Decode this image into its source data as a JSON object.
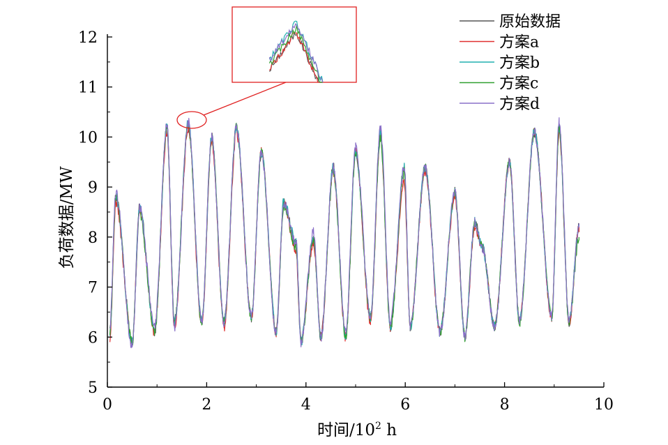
{
  "chart_data": {
    "type": "line",
    "xlabel": "时间/10",
    "xlabel_sup": "2",
    "xlabel_unit": " h",
    "ylabel": "负荷数据/MW",
    "xlim": [
      0,
      10
    ],
    "ylim": [
      5,
      12
    ],
    "xticks": [
      "0",
      "2",
      "4",
      "6",
      "8",
      "10"
    ],
    "yticks": [
      "5",
      "6",
      "7",
      "8",
      "9",
      "10",
      "11",
      "12"
    ],
    "grid": false,
    "legend_position": "top-right",
    "inset": {
      "type": "zoom",
      "region_center": [
        1.65,
        10.35
      ]
    },
    "daily_extremes_x": [
      0.05,
      0.17,
      0.5,
      0.65,
      0.95,
      1.2,
      1.35,
      1.63,
      1.9,
      2.1,
      2.35,
      2.6,
      2.9,
      3.1,
      3.4,
      3.55,
      3.8,
      3.9,
      4.15,
      4.3,
      4.55,
      4.8,
      5.0,
      5.3,
      5.5,
      5.7,
      5.98,
      6.1,
      6.4,
      6.7,
      7.0,
      7.2,
      7.4,
      7.55,
      7.8,
      8.1,
      8.3,
      8.6,
      8.95,
      9.1,
      9.3,
      9.5
    ],
    "series": [
      {
        "name": "原始数据",
        "color": "#555555",
        "x": [
          0.05,
          0.17,
          0.5,
          0.65,
          0.95,
          1.2,
          1.35,
          1.63,
          1.9,
          2.1,
          2.35,
          2.6,
          2.9,
          3.1,
          3.4,
          3.55,
          3.8,
          3.9,
          4.15,
          4.3,
          4.55,
          4.8,
          5.0,
          5.3,
          5.5,
          5.7,
          5.98,
          6.1,
          6.4,
          6.7,
          7.0,
          7.2,
          7.4,
          7.55,
          7.8,
          8.1,
          8.3,
          8.6,
          8.95,
          9.1,
          9.3,
          9.5
        ],
        "values": [
          6.1,
          8.8,
          5.9,
          8.6,
          6.1,
          10.2,
          6.3,
          10.2,
          6.3,
          10.0,
          6.3,
          10.2,
          6.4,
          9.7,
          6.1,
          8.7,
          7.9,
          5.9,
          8.0,
          6.0,
          9.4,
          6.0,
          9.7,
          6.4,
          10.1,
          6.2,
          9.4,
          6.2,
          9.4,
          6.1,
          8.9,
          6.0,
          8.3,
          7.8,
          6.2,
          9.5,
          6.3,
          10.1,
          6.4,
          10.2,
          6.3,
          8.2
        ]
      },
      {
        "name": "方案a",
        "color": "#e03030",
        "x": [
          0.05,
          0.17,
          0.5,
          0.65,
          0.95,
          1.2,
          1.35,
          1.63,
          1.9,
          2.1,
          2.35,
          2.6,
          2.9,
          3.1,
          3.4,
          3.55,
          3.8,
          3.9,
          4.15,
          4.3,
          4.55,
          4.8,
          5.0,
          5.3,
          5.5,
          5.7,
          5.98,
          6.1,
          6.4,
          6.7,
          7.0,
          7.2,
          7.4,
          7.55,
          7.8,
          8.1,
          8.3,
          8.6,
          8.95,
          9.1,
          9.3,
          9.5
        ],
        "values": [
          6.0,
          8.7,
          5.9,
          8.5,
          6.1,
          10.1,
          6.2,
          10.2,
          6.2,
          9.9,
          6.2,
          10.1,
          6.4,
          9.7,
          6.1,
          8.7,
          7.7,
          5.9,
          7.9,
          6.0,
          9.3,
          6.0,
          9.7,
          6.3,
          10.0,
          6.2,
          9.1,
          6.2,
          9.3,
          6.1,
          8.8,
          6.0,
          8.2,
          7.8,
          6.2,
          9.5,
          6.3,
          10.1,
          6.4,
          10.1,
          6.3,
          8.2
        ]
      },
      {
        "name": "方案b",
        "color": "#20b0b0",
        "x": [
          0.05,
          0.17,
          0.5,
          0.65,
          0.95,
          1.2,
          1.35,
          1.63,
          1.9,
          2.1,
          2.35,
          2.6,
          2.9,
          3.1,
          3.4,
          3.55,
          3.8,
          3.9,
          4.15,
          4.3,
          4.55,
          4.8,
          5.0,
          5.3,
          5.5,
          5.7,
          5.98,
          6.1,
          6.4,
          6.7,
          7.0,
          7.2,
          7.4,
          7.55,
          7.8,
          8.1,
          8.3,
          8.6,
          8.95,
          9.1,
          9.3,
          9.5
        ],
        "values": [
          6.1,
          8.8,
          5.9,
          8.6,
          6.1,
          10.2,
          6.3,
          10.3,
          6.3,
          10.0,
          6.3,
          10.2,
          6.4,
          9.7,
          6.1,
          8.7,
          7.9,
          5.9,
          8.0,
          6.0,
          9.4,
          6.0,
          9.7,
          6.4,
          10.1,
          6.2,
          9.4,
          6.2,
          9.4,
          6.1,
          8.9,
          6.0,
          8.3,
          7.8,
          6.2,
          9.5,
          6.3,
          10.1,
          6.4,
          10.2,
          6.3,
          8.2
        ]
      },
      {
        "name": "方案c",
        "color": "#30a030",
        "x": [
          0.05,
          0.17,
          0.5,
          0.65,
          0.95,
          1.2,
          1.35,
          1.63,
          1.9,
          2.1,
          2.35,
          2.6,
          2.9,
          3.1,
          3.4,
          3.55,
          3.8,
          3.9,
          4.15,
          4.3,
          4.55,
          4.8,
          5.0,
          5.3,
          5.5,
          5.7,
          5.98,
          6.1,
          6.4,
          6.7,
          7.0,
          7.2,
          7.4,
          7.55,
          7.8,
          8.1,
          8.3,
          8.6,
          8.95,
          9.1,
          9.3,
          9.5
        ],
        "values": [
          6.1,
          8.8,
          5.9,
          8.5,
          6.1,
          10.2,
          6.3,
          10.25,
          6.3,
          10.0,
          6.3,
          10.2,
          6.4,
          9.7,
          6.1,
          8.6,
          7.8,
          5.9,
          8.0,
          6.0,
          9.3,
          6.0,
          9.7,
          6.4,
          10.0,
          6.2,
          9.3,
          6.2,
          9.4,
          6.1,
          8.9,
          6.0,
          8.3,
          7.8,
          6.2,
          9.5,
          6.3,
          10.1,
          6.4,
          10.2,
          6.3,
          8.0
        ]
      },
      {
        "name": "方案d",
        "color": "#8a70c8",
        "x": [
          0.05,
          0.17,
          0.5,
          0.65,
          0.95,
          1.2,
          1.35,
          1.63,
          1.9,
          2.1,
          2.35,
          2.6,
          2.9,
          3.1,
          3.4,
          3.55,
          3.8,
          3.9,
          4.15,
          4.3,
          4.55,
          4.8,
          5.0,
          5.3,
          5.5,
          5.7,
          5.98,
          6.1,
          6.4,
          6.7,
          7.0,
          7.2,
          7.4,
          7.55,
          7.8,
          8.1,
          8.3,
          8.6,
          8.95,
          9.1,
          9.3,
          9.5
        ],
        "values": [
          6.2,
          8.9,
          5.8,
          8.6,
          6.2,
          10.25,
          6.2,
          10.3,
          6.3,
          10.0,
          6.3,
          10.2,
          6.4,
          9.7,
          6.1,
          8.7,
          7.9,
          5.9,
          8.1,
          6.0,
          9.4,
          6.1,
          9.8,
          6.4,
          10.2,
          6.3,
          9.4,
          6.2,
          9.4,
          6.1,
          8.9,
          6.0,
          8.3,
          7.8,
          6.2,
          9.5,
          6.3,
          10.1,
          6.4,
          10.3,
          6.3,
          8.2
        ]
      }
    ]
  }
}
